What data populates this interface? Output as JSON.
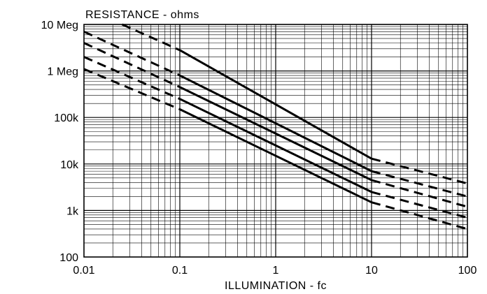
{
  "chart_data": {
    "type": "line",
    "title": "",
    "ylabel": "RESISTANCE - ohms",
    "xlabel": "ILLUMINATION - fc",
    "x_scale": "log",
    "y_scale": "log",
    "xlim": [
      0.01,
      100
    ],
    "ylim": [
      100,
      10000000
    ],
    "grid": true,
    "legend": "none",
    "x_ticks": [
      {
        "value": 0.01,
        "label": "0.01"
      },
      {
        "value": 0.1,
        "label": "0.1"
      },
      {
        "value": 1,
        "label": "1"
      },
      {
        "value": 10,
        "label": "10"
      },
      {
        "value": 100,
        "label": "100"
      }
    ],
    "y_ticks": [
      {
        "value": 100,
        "label": "100"
      },
      {
        "value": 1000,
        "label": "1k"
      },
      {
        "value": 10000,
        "label": "10k"
      },
      {
        "value": 100000,
        "label": "100k"
      },
      {
        "value": 1000000,
        "label": "1 Meg"
      },
      {
        "value": 10000000,
        "label": "10 Meg"
      }
    ],
    "series": [
      {
        "dashed_low": {
          "x": [
            0.025,
            0.1
          ],
          "y": [
            10000000,
            2800000
          ]
        },
        "solid": {
          "x": [
            0.1,
            10
          ],
          "y": [
            2800000,
            13000
          ]
        },
        "dashed_high": {
          "x": [
            10,
            100
          ],
          "y": [
            13000,
            3800
          ]
        }
      },
      {
        "dashed_low": {
          "x": [
            0.01,
            0.1
          ],
          "y": [
            7000000,
            800000
          ]
        },
        "solid": {
          "x": [
            0.1,
            10
          ],
          "y": [
            800000,
            7000
          ]
        },
        "dashed_high": {
          "x": [
            10,
            100
          ],
          "y": [
            7000,
            2000
          ]
        }
      },
      {
        "dashed_low": {
          "x": [
            0.01,
            0.1
          ],
          "y": [
            4000000,
            450000
          ]
        },
        "solid": {
          "x": [
            0.1,
            10
          ],
          "y": [
            450000,
            4500
          ]
        },
        "dashed_high": {
          "x": [
            10,
            100
          ],
          "y": [
            4500,
            1200
          ]
        }
      },
      {
        "dashed_low": {
          "x": [
            0.01,
            0.1
          ],
          "y": [
            2000000,
            250000
          ]
        },
        "solid": {
          "x": [
            0.1,
            10
          ],
          "y": [
            250000,
            2500
          ]
        },
        "dashed_high": {
          "x": [
            10,
            100
          ],
          "y": [
            2500,
            700
          ]
        }
      },
      {
        "dashed_low": {
          "x": [
            0.01,
            0.1
          ],
          "y": [
            1100000,
            150000
          ]
        },
        "solid": {
          "x": [
            0.1,
            10
          ],
          "y": [
            150000,
            1500
          ]
        },
        "dashed_high": {
          "x": [
            10,
            100
          ],
          "y": [
            1500,
            400
          ]
        }
      }
    ],
    "colors": {
      "line": "#000000",
      "grid": "#000000",
      "background": "#ffffff"
    }
  }
}
